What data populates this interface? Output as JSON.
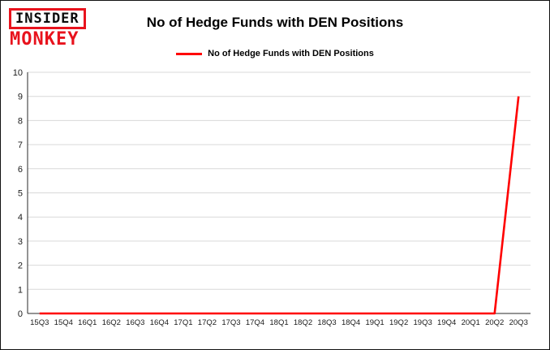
{
  "logo": {
    "line1": "INSIDER",
    "line2": "MONKEY",
    "accent_color": "#e8131d"
  },
  "header": {
    "title": "No of Hedge Funds with DEN Positions"
  },
  "legend": {
    "label": "No of Hedge Funds with DEN Positions",
    "color": "#ff0000"
  },
  "chart_data": {
    "type": "line",
    "title": "No of Hedge Funds with DEN Positions",
    "xlabel": "",
    "ylabel": "",
    "categories": [
      "15Q3",
      "15Q4",
      "16Q1",
      "16Q2",
      "16Q3",
      "16Q4",
      "17Q1",
      "17Q2",
      "17Q3",
      "17Q4",
      "18Q1",
      "18Q2",
      "18Q3",
      "18Q4",
      "19Q1",
      "19Q2",
      "19Q3",
      "19Q4",
      "20Q1",
      "20Q2",
      "20Q3"
    ],
    "series": [
      {
        "name": "No of Hedge Funds with DEN Positions",
        "color": "#ff0000",
        "values": [
          0,
          0,
          0,
          0,
          0,
          0,
          0,
          0,
          0,
          0,
          0,
          0,
          0,
          0,
          0,
          0,
          0,
          0,
          0,
          0,
          9
        ]
      }
    ],
    "ylim": [
      0,
      10
    ],
    "ytick_step": 1,
    "grid": true,
    "legend_position": "top"
  }
}
